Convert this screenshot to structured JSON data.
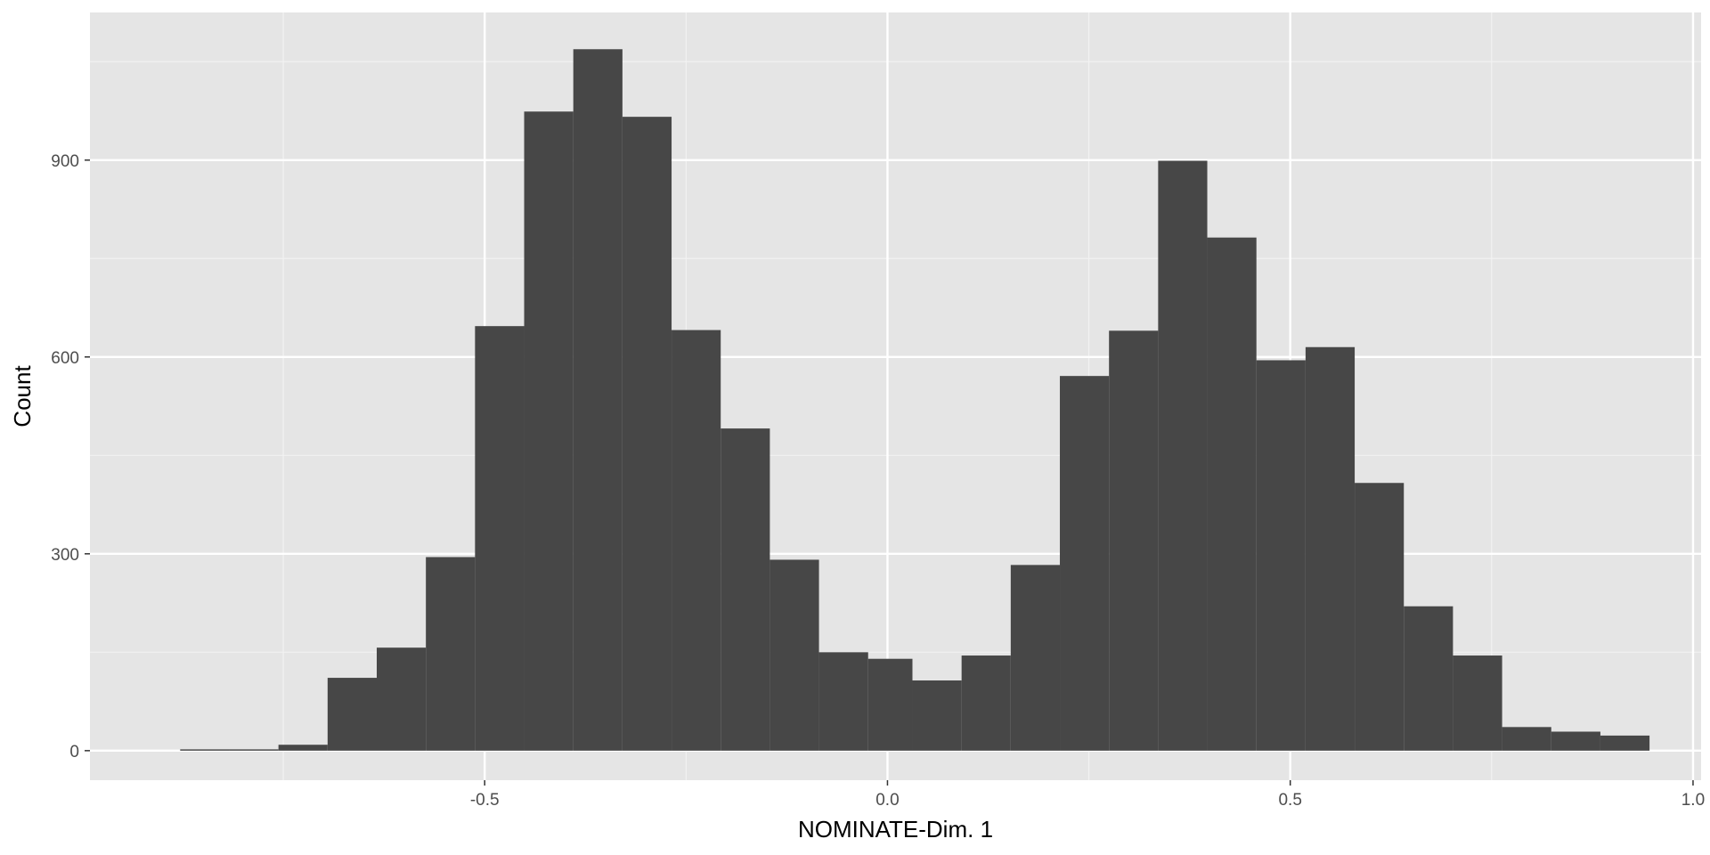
{
  "chart_data": {
    "type": "bar",
    "title": "",
    "xlabel": "NOMINATE-Dim. 1",
    "ylabel": "Count",
    "xlim": [
      -0.99,
      1.01
    ],
    "ylim": [
      -45,
      1125
    ],
    "x_ticks": [
      {
        "value": -0.5,
        "label": "-0.5"
      },
      {
        "value": 0.0,
        "label": "0.0"
      },
      {
        "value": 0.5,
        "label": "0.5"
      },
      {
        "value": 1.0,
        "label": "1.0"
      }
    ],
    "y_ticks": [
      {
        "value": 0,
        "label": "0"
      },
      {
        "value": 300,
        "label": "300"
      },
      {
        "value": 600,
        "label": "600"
      },
      {
        "value": 900,
        "label": "900"
      }
    ],
    "x_minor_breaks": [
      -0.75,
      -0.25,
      0.25,
      0.75
    ],
    "y_minor_breaks": [
      150,
      450,
      750,
      1050
    ],
    "bins": [
      {
        "x0": -0.878,
        "x1": -0.817,
        "count": 2
      },
      {
        "x0": -0.817,
        "x1": -0.756,
        "count": 2
      },
      {
        "x0": -0.756,
        "x1": -0.695,
        "count": 9
      },
      {
        "x0": -0.695,
        "x1": -0.634,
        "count": 111
      },
      {
        "x0": -0.634,
        "x1": -0.573,
        "count": 157
      },
      {
        "x0": -0.573,
        "x1": -0.512,
        "count": 295
      },
      {
        "x0": -0.512,
        "x1": -0.451,
        "count": 647
      },
      {
        "x0": -0.451,
        "x1": -0.39,
        "count": 974
      },
      {
        "x0": -0.39,
        "x1": -0.329,
        "count": 1069
      },
      {
        "x0": -0.329,
        "x1": -0.268,
        "count": 966
      },
      {
        "x0": -0.268,
        "x1": -0.207,
        "count": 641
      },
      {
        "x0": -0.207,
        "x1": -0.146,
        "count": 491
      },
      {
        "x0": -0.146,
        "x1": -0.085,
        "count": 291
      },
      {
        "x0": -0.085,
        "x1": -0.024,
        "count": 150
      },
      {
        "x0": -0.024,
        "x1": 0.031,
        "count": 140
      },
      {
        "x0": 0.031,
        "x1": 0.092,
        "count": 107
      },
      {
        "x0": 0.092,
        "x1": 0.153,
        "count": 145
      },
      {
        "x0": 0.153,
        "x1": 0.214,
        "count": 283
      },
      {
        "x0": 0.214,
        "x1": 0.275,
        "count": 571
      },
      {
        "x0": 0.275,
        "x1": 0.336,
        "count": 640
      },
      {
        "x0": 0.336,
        "x1": 0.397,
        "count": 899
      },
      {
        "x0": 0.397,
        "x1": 0.458,
        "count": 782
      },
      {
        "x0": 0.458,
        "x1": 0.519,
        "count": 595
      },
      {
        "x0": 0.519,
        "x1": 0.58,
        "count": 615
      },
      {
        "x0": 0.58,
        "x1": 0.641,
        "count": 408
      },
      {
        "x0": 0.641,
        "x1": 0.702,
        "count": 220
      },
      {
        "x0": 0.702,
        "x1": 0.763,
        "count": 145
      },
      {
        "x0": 0.763,
        "x1": 0.824,
        "count": 36
      },
      {
        "x0": 0.824,
        "x1": 0.885,
        "count": 29
      },
      {
        "x0": 0.885,
        "x1": 0.946,
        "count": 23
      }
    ],
    "grid": true,
    "colors": {
      "panel_background": "#e5e5e5",
      "grid_major": "#ffffff",
      "grid_minor": "#f2f2f2",
      "bar_fill": "#474747",
      "tick_mark": "#333333"
    }
  }
}
